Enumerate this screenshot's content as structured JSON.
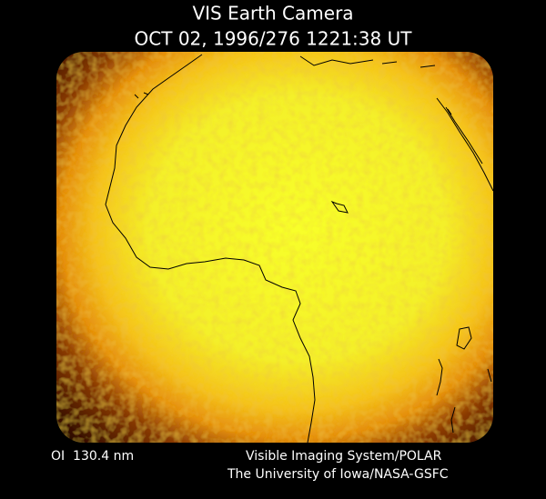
{
  "header": {
    "title": "VIS Earth Camera",
    "timestamp": "OCT 02, 1996/276 1221:38 UT"
  },
  "footer": {
    "wavelength": "OI  130.4 nm",
    "instrument": "Visible Imaging System/POLAR",
    "credit": "The University of Iowa/NASA-GSFC"
  }
}
